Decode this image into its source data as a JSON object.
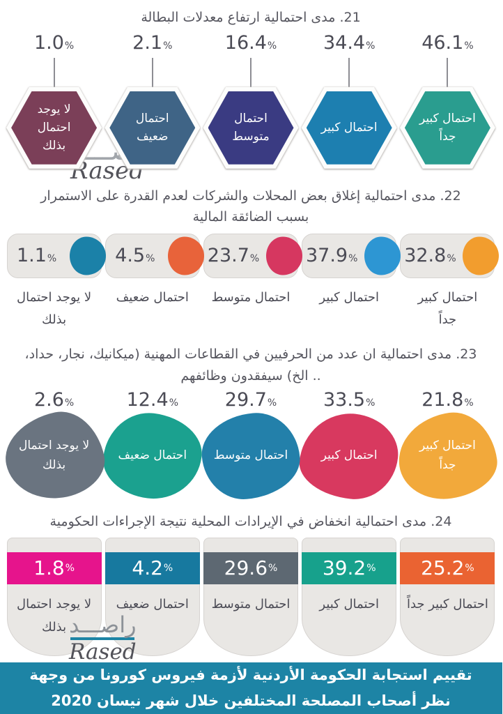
{
  "percent_sign": "%",
  "watermark": {
    "arabic": "راصـــد",
    "latin": "Rased"
  },
  "footer": {
    "text": "تقييم استجابة الحكومة الأردنية لأزمة فيروس كورونا من وجهة نظر أصحاب المصلحة المختلفين خلال شهر نيسان 2020",
    "bg": "#1d84a5"
  },
  "colors": {
    "card_bg": "#e9e7e4",
    "card_border": "#d6d3d0",
    "accent_teal": "#1d84a5",
    "text_dark": "#4b4b55"
  },
  "chart_data": [
    {
      "type": "bar",
      "question_no": "21",
      "title": "21. مدى احتمالية ارتفاع معدلات البطالة",
      "unit": "%",
      "shape_style": "hexagon-badges",
      "order": "right-to-left",
      "legend_position": "none",
      "categories": [
        "احتمال كبير جداً",
        "احتمال كبير",
        "احتمال متوسط",
        "احتمال ضعيف",
        "لا يوجد احتمال بذلك"
      ],
      "values": [
        "46.1",
        "34.4",
        "16.4",
        "2.1",
        "1.0"
      ],
      "colors": [
        "#2a9d8f",
        "#1d7fb0",
        "#3a3b82",
        "#3f6486",
        "#7b3f58"
      ]
    },
    {
      "type": "bar",
      "question_no": "22",
      "title": "22. مدى احتمالية إغلاق بعض المحلات والشركات لعدم القدرة على الاستمرار بسبب الضائقة المالية",
      "unit": "%",
      "shape_style": "rounded-card-with-dot",
      "order": "right-to-left",
      "legend_position": "none",
      "categories": [
        "احتمال كبير جداً",
        "احتمال كبير",
        "احتمال متوسط",
        "احتمال ضعيف",
        "لا يوجد احتمال بذلك"
      ],
      "values": [
        "32.8",
        "37.9",
        "23.7",
        "4.5",
        "1.1"
      ],
      "colors": [
        "#f29d2e",
        "#2d96d3",
        "#d63760",
        "#e8633a",
        "#1b81a8"
      ]
    },
    {
      "type": "bar",
      "question_no": "23",
      "title": "23. مدى احتمالية ان عدد من الحرفيين في القطاعات المهنية (ميكانيك، نجار، حداد، .. الخ) سيفقدون وظائفهم",
      "unit": "%",
      "shape_style": "organic-blobs",
      "order": "right-to-left",
      "legend_position": "none",
      "categories": [
        "احتمال كبير جداً",
        "احتمال كبير",
        "احتمال متوسط",
        "احتمال ضعيف",
        "لا يوجد احتمال بذلك"
      ],
      "values": [
        "21.8",
        "33.5",
        "29.7",
        "12.4",
        "2.6"
      ],
      "colors": [
        "#f2a93b",
        "#d8395f",
        "#2380aa",
        "#1ba18f",
        "#6a7480"
      ]
    },
    {
      "type": "bar",
      "question_no": "24",
      "title": "24. مدى احتمالية انخفاض في الإيرادات المحلية نتيجة الإجراءات الحكومية",
      "unit": "%",
      "shape_style": "arch-cards-with-band",
      "order": "right-to-left",
      "legend_position": "none",
      "categories": [
        "احتمال كبير جداً",
        "احتمال كبير",
        "احتمال متوسط",
        "احتمال ضعيف",
        "لا يوجد احتمال بذلك"
      ],
      "values": [
        "25.2",
        "39.2",
        "29.6",
        "4.2",
        "1.8"
      ],
      "colors": [
        "#ea6332",
        "#17a18c",
        "#5d6872",
        "#17799f",
        "#e6148c"
      ]
    }
  ]
}
